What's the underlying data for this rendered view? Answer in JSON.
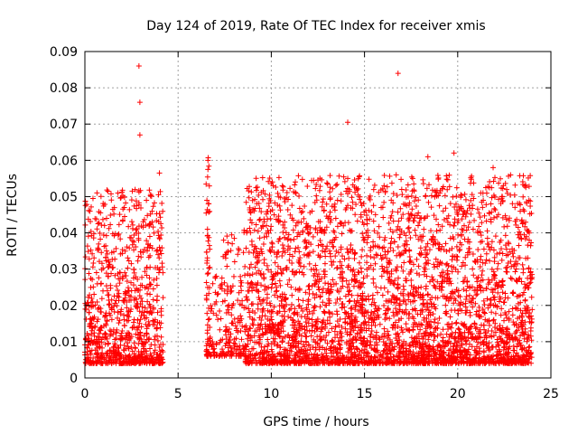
{
  "chart_data": {
    "type": "scatter",
    "title": "Day 124 of 2019, Rate Of TEC Index for receiver xmis",
    "xlabel": "GPS time / hours",
    "ylabel": "ROTI / TECUs",
    "xlim": [
      0,
      25
    ],
    "ylim": [
      0,
      0.09
    ],
    "x_ticks": [
      "0",
      "5",
      "10",
      "15",
      "20",
      "25"
    ],
    "y_ticks": [
      "0",
      "0.01",
      "0.02",
      "0.03",
      "0.04",
      "0.05",
      "0.06",
      "0.07",
      "0.08",
      "0.09"
    ],
    "grid": true,
    "marker": "+",
    "series_color": "#ff0000",
    "data_segments": [
      {
        "x_start": 0.0,
        "x_end": 4.2,
        "y_low": 0.004,
        "y_high": 0.052,
        "density": 900
      },
      {
        "x_start": 6.5,
        "x_end": 6.7,
        "y_low": 0.006,
        "y_high": 0.061,
        "density": 60
      },
      {
        "x_start": 6.7,
        "x_end": 7.4,
        "y_low": 0.006,
        "y_high": 0.032,
        "density": 60
      },
      {
        "x_start": 7.4,
        "x_end": 8.6,
        "y_low": 0.006,
        "y_high": 0.042,
        "density": 140
      },
      {
        "x_start": 8.6,
        "x_end": 24.0,
        "y_low": 0.004,
        "y_high": 0.056,
        "density": 3600
      }
    ],
    "outliers": [
      {
        "x": 2.9,
        "y": 0.086
      },
      {
        "x": 2.95,
        "y": 0.076
      },
      {
        "x": 2.95,
        "y": 0.067
      },
      {
        "x": 14.1,
        "y": 0.0705
      },
      {
        "x": 16.8,
        "y": 0.084
      },
      {
        "x": 16.7,
        "y": 0.056
      },
      {
        "x": 19.8,
        "y": 0.062
      },
      {
        "x": 18.4,
        "y": 0.061
      },
      {
        "x": 14.1,
        "y": 0.055
      },
      {
        "x": 21.9,
        "y": 0.058
      },
      {
        "x": 4.0,
        "y": 0.0565
      },
      {
        "x": 6.6,
        "y": 0.06
      },
      {
        "x": 6.6,
        "y": 0.0575
      }
    ]
  }
}
